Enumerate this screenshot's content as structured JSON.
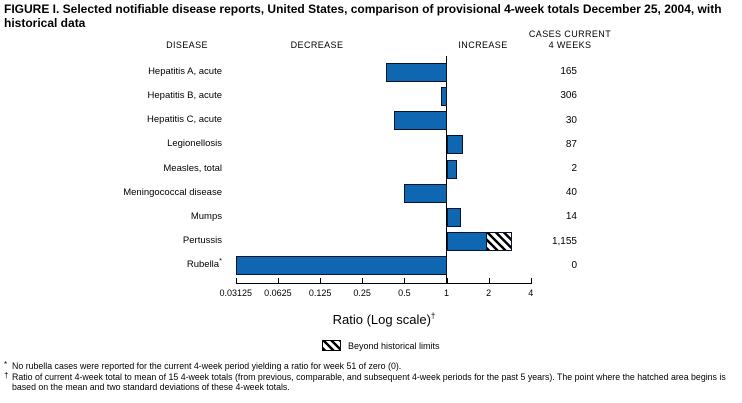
{
  "title": "FIGURE I. Selected notifiable disease reports, United States, comparison of provisional 4-week totals December 25, 2004, with historical data",
  "columns": {
    "disease": "DISEASE",
    "decrease": "DECREASE",
    "increase": "INCREASE",
    "cases_line1": "CASES CURRENT",
    "cases_line2": "4 WEEKS"
  },
  "chart_data": {
    "type": "bar",
    "orientation": "horizontal",
    "scale": "log2",
    "baseline_ratio": 1,
    "xlabel": "Ratio (Log scale)",
    "xlabel_sup": "†",
    "xlim": [
      0.03125,
      4
    ],
    "x_ticks": [
      "0.03125",
      "0.0625",
      "0.125",
      "0.25",
      "0.5",
      "1",
      "2",
      "4"
    ],
    "x_tick_values": [
      0.03125,
      0.0625,
      0.125,
      0.25,
      0.5,
      1,
      2,
      4
    ],
    "bar_color": "#0f67b1",
    "rows": [
      {
        "disease": "Hepatitis A, acute",
        "ratio": 0.37,
        "cases": "165"
      },
      {
        "disease": "Hepatitis B, acute",
        "ratio": 0.92,
        "cases": "306"
      },
      {
        "disease": "Hepatitis C, acute",
        "ratio": 0.42,
        "cases": "30"
      },
      {
        "disease": "Legionellosis",
        "ratio": 1.28,
        "cases": "87"
      },
      {
        "disease": "Measles, total",
        "ratio": 1.16,
        "cases": "2"
      },
      {
        "disease": "Meningococcal disease",
        "ratio": 0.5,
        "cases": "40"
      },
      {
        "disease": "Mumps",
        "ratio": 1.25,
        "cases": "14"
      },
      {
        "disease": "Pertussis",
        "ratio": 1.9,
        "hatch_end_ratio": 2.9,
        "beyond_historical_limits": true,
        "cases": "1,155"
      },
      {
        "disease": "Rubella",
        "label_sup": "*",
        "ratio": 0.03125,
        "cases": "0"
      }
    ],
    "legend": {
      "label": "Beyond historical limits"
    }
  },
  "footnotes": [
    {
      "marker": "*",
      "text": "No rubella cases were reported for the current 4-week period yielding a ratio for week 51 of zero (0)."
    },
    {
      "marker": "†",
      "text": "Ratio of current 4-week total to mean of 15 4-week totals (from previous, comparable, and subsequent 4-week periods for the past 5 years). The point where the hatched area begins is based on the mean and two standard deviations of these 4-week totals."
    }
  ]
}
